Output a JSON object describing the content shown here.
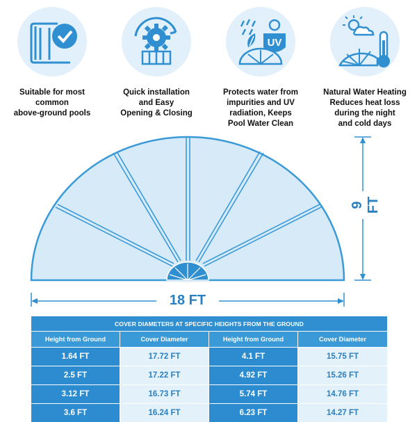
{
  "features": [
    {
      "icon": "pool-check-icon",
      "caption": "Suitable for most\ncommon\nabove-ground pools"
    },
    {
      "icon": "gear-install-icon",
      "caption": "Quick installation\nand Easy\nOpening & Closing"
    },
    {
      "icon": "uv-protect-icon",
      "caption": "Protects water from\nimpurities and UV\nradiation, Keeps\nPool Water Clean"
    },
    {
      "icon": "thermometer-sun-icon",
      "caption": "Natural Water Heating\nReduces heat loss\nduring the night\nand cold days"
    }
  ],
  "diagram": {
    "width_label": "18 FT",
    "height_label": "9 FT"
  },
  "table": {
    "title": "COVER DIAMETERS AT SPECIFIC HEIGHTS FROM THE GROUND",
    "headers": [
      "Height from Ground",
      "Cover Diameter",
      "Height from Ground",
      "Cover Diameter"
    ],
    "rows": [
      [
        "1.64 FT",
        "17.72 FT",
        "4.1 FT",
        "15.75 FT"
      ],
      [
        "2.5 FT",
        "17.22 FT",
        "4.92 FT",
        "15.26 FT"
      ],
      [
        "3.12 FT",
        "16.73 FT",
        "5.74 FT",
        "14.76 FT"
      ],
      [
        "3.6 FT",
        "16.24 FT",
        "6.23 FT",
        "14.27 FT"
      ]
    ]
  },
  "colors": {
    "accent": "#2f8fd0",
    "cover_fill": "#d6eaf8",
    "cover_stroke": "#3a9ad8"
  }
}
